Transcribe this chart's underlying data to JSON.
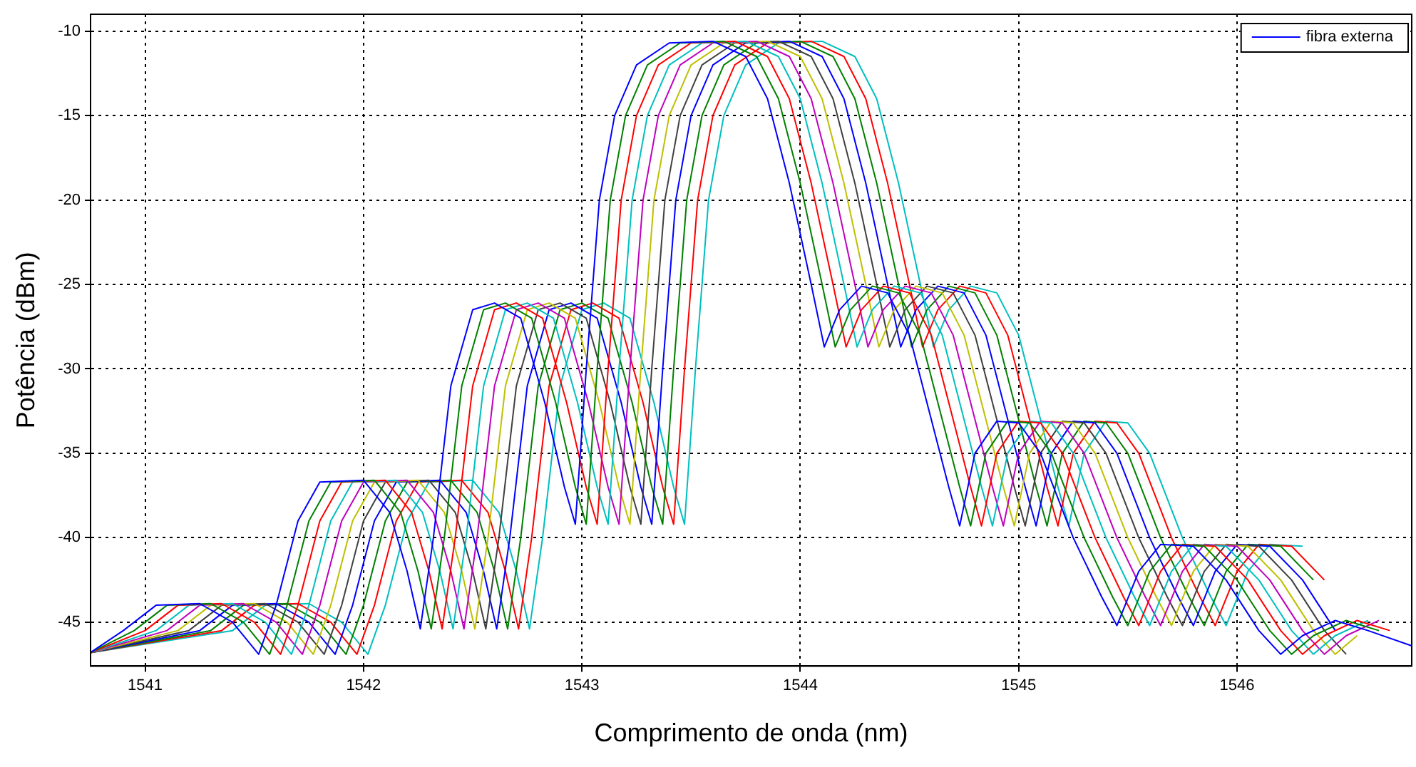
{
  "chart_data": {
    "type": "line",
    "xlabel": "Comprimento de onda (nm)",
    "ylabel": "Potência (dBm)",
    "xlim": [
      1540.75,
      1546.8
    ],
    "xticks": [
      1541,
      1542,
      1543,
      1544,
      1545,
      1546
    ],
    "ylim": [
      -47.6,
      -9
    ],
    "yticks": [
      -45,
      -40,
      -35,
      -30,
      -25,
      -20,
      -15,
      -10
    ],
    "grid": true,
    "legend": "top right",
    "marker": "none",
    "line_style": "solid",
    "series": [
      {
        "name": "fibra externa",
        "color": "#0000ff",
        "x": [
          1540.75,
          1540.9,
          1541.05,
          1541.25,
          1541.4,
          1541.52,
          1541.6,
          1541.7,
          1541.8,
          1542.0,
          1542.12,
          1542.2,
          1542.26,
          1542.32,
          1542.4,
          1542.5,
          1542.6,
          1542.72,
          1542.83,
          1542.92,
          1542.97,
          1543.02,
          1543.08,
          1543.15,
          1543.25,
          1543.4,
          1543.6,
          1543.75,
          1543.85,
          1543.95,
          1544.05,
          1544.11,
          1544.18,
          1544.28,
          1544.4,
          1544.5,
          1544.6,
          1544.68,
          1544.73,
          1544.8,
          1544.9,
          1545.0,
          1545.1,
          1545.25,
          1545.38,
          1545.45,
          1545.55,
          1545.65,
          1545.8,
          1545.95,
          1546.1,
          1546.2,
          1546.3,
          1546.45,
          1546.6,
          1546.8
        ],
        "values": [
          -46.8,
          -45.5,
          -44.0,
          -43.9,
          -45.0,
          -46.9,
          -44,
          -39,
          -36.7,
          -36.6,
          -38.5,
          -42,
          -45.4,
          -40,
          -31,
          -26.5,
          -26.1,
          -27,
          -32,
          -37,
          -39.2,
          -30,
          -20,
          -15,
          -12,
          -10.7,
          -10.6,
          -11.5,
          -14,
          -19,
          -25,
          -28.7,
          -26.5,
          -25.1,
          -25.5,
          -28,
          -33,
          -37,
          -39.3,
          -35,
          -33.1,
          -33.2,
          -35,
          -40,
          -43.5,
          -45.2,
          -42,
          -40.4,
          -40.5,
          -42.5,
          -45.5,
          -46.9,
          -45.8,
          -44.9,
          -45.5,
          -46.4
        ]
      },
      {
        "color": "#008000",
        "x": [
          1540.75,
          1540.95,
          1541.1,
          1541.3,
          1541.45,
          1541.57,
          1541.65,
          1541.75,
          1541.85,
          1542.05,
          1542.17,
          1542.25,
          1542.31,
          1542.37,
          1542.45,
          1542.55,
          1542.65,
          1542.77,
          1542.88,
          1542.97,
          1543.02,
          1543.07,
          1543.13,
          1543.2,
          1543.3,
          1543.45,
          1543.65,
          1543.8,
          1543.9,
          1544.0,
          1544.1,
          1544.16,
          1544.23,
          1544.33,
          1544.45,
          1544.55,
          1544.65,
          1544.73,
          1544.78,
          1544.85,
          1544.95,
          1545.05,
          1545.15,
          1545.3,
          1545.43,
          1545.5,
          1545.6,
          1545.7,
          1545.85,
          1546.0,
          1546.15,
          1546.25,
          1546.35,
          1546.5,
          1546.65
        ],
        "values": [
          -46.8,
          -45.5,
          -44.0,
          -43.9,
          -45.0,
          -46.9,
          -44,
          -39,
          -36.7,
          -36.6,
          -38.5,
          -42,
          -45.4,
          -40,
          -31,
          -26.5,
          -26.1,
          -27,
          -32,
          -37,
          -39.2,
          -30,
          -20,
          -15,
          -12,
          -10.7,
          -10.6,
          -11.5,
          -14,
          -19,
          -25,
          -28.7,
          -26.5,
          -25.1,
          -25.5,
          -28,
          -33,
          -37,
          -39.3,
          -35,
          -33.1,
          -33.2,
          -35,
          -40,
          -43.5,
          -45.2,
          -42,
          -40.4,
          -40.5,
          -42.5,
          -45.5,
          -46.9,
          -45.8,
          -44.9,
          -45.5
        ]
      },
      {
        "color": "#ff0000",
        "x": [
          1540.75,
          1541.0,
          1541.15,
          1541.35,
          1541.5,
          1541.62,
          1541.7,
          1541.8,
          1541.9,
          1542.1,
          1542.22,
          1542.3,
          1542.36,
          1542.42,
          1542.5,
          1542.6,
          1542.7,
          1542.82,
          1542.93,
          1543.02,
          1543.07,
          1543.12,
          1543.18,
          1543.25,
          1543.35,
          1543.5,
          1543.7,
          1543.85,
          1543.95,
          1544.05,
          1544.15,
          1544.21,
          1544.28,
          1544.38,
          1544.5,
          1544.6,
          1544.7,
          1544.78,
          1544.83,
          1544.9,
          1545.0,
          1545.1,
          1545.2,
          1545.35,
          1545.48,
          1545.55,
          1545.65,
          1545.75,
          1545.9,
          1546.05,
          1546.2,
          1546.3,
          1546.4,
          1546.55,
          1546.7
        ],
        "values": [
          -46.8,
          -45.5,
          -44.0,
          -43.9,
          -45.0,
          -46.9,
          -44,
          -39,
          -36.7,
          -36.6,
          -38.5,
          -42,
          -45.4,
          -40,
          -31,
          -26.5,
          -26.1,
          -27,
          -32,
          -37,
          -39.2,
          -30,
          -20,
          -15,
          -12,
          -10.7,
          -10.6,
          -11.5,
          -14,
          -19,
          -25,
          -28.7,
          -26.5,
          -25.1,
          -25.5,
          -28,
          -33,
          -37,
          -39.3,
          -35,
          -33.1,
          -33.2,
          -35,
          -40,
          -43.5,
          -45.2,
          -42,
          -40.4,
          -40.5,
          -42.5,
          -45.5,
          -46.9,
          -45.8,
          -44.9,
          -45.5
        ]
      },
      {
        "color": "#00bfbf",
        "x": [
          1540.75,
          1541.05,
          1541.2,
          1541.4,
          1541.55,
          1541.67,
          1541.75,
          1541.85,
          1541.95,
          1542.15,
          1542.27,
          1542.35,
          1542.41,
          1542.47,
          1542.55,
          1542.65,
          1542.75,
          1542.87,
          1542.98,
          1543.07,
          1543.12,
          1543.17,
          1543.23,
          1543.3,
          1543.4,
          1543.55,
          1543.75,
          1543.9,
          1544.0,
          1544.1,
          1544.2,
          1544.26,
          1544.33,
          1544.43,
          1544.55,
          1544.65,
          1544.75,
          1544.83,
          1544.88,
          1544.95,
          1545.05,
          1545.15,
          1545.25,
          1545.4,
          1545.53,
          1545.6,
          1545.7,
          1545.8,
          1545.95,
          1546.1,
          1546.25,
          1546.35,
          1546.45,
          1546.6
        ],
        "values": [
          -46.8,
          -45.5,
          -44.0,
          -43.9,
          -45.0,
          -46.9,
          -44,
          -39,
          -36.7,
          -36.6,
          -38.5,
          -42,
          -45.4,
          -40,
          -31,
          -26.5,
          -26.1,
          -27,
          -32,
          -37,
          -39.2,
          -30,
          -20,
          -15,
          -12,
          -10.7,
          -10.6,
          -11.5,
          -14,
          -19,
          -25,
          -28.7,
          -26.5,
          -25.1,
          -25.5,
          -28,
          -33,
          -37,
          -39.3,
          -35,
          -33.1,
          -33.2,
          -35,
          -40,
          -43.5,
          -45.2,
          -42,
          -40.4,
          -40.5,
          -42.5,
          -45.5,
          -46.9,
          -45.8,
          -44.9
        ]
      },
      {
        "color": "#bf00bf",
        "x": [
          1540.75,
          1541.1,
          1541.25,
          1541.45,
          1541.6,
          1541.72,
          1541.8,
          1541.9,
          1542.0,
          1542.2,
          1542.32,
          1542.4,
          1542.46,
          1542.52,
          1542.6,
          1542.7,
          1542.8,
          1542.92,
          1543.03,
          1543.12,
          1543.17,
          1543.22,
          1543.28,
          1543.35,
          1543.45,
          1543.6,
          1543.8,
          1543.95,
          1544.05,
          1544.15,
          1544.25,
          1544.31,
          1544.38,
          1544.48,
          1544.6,
          1544.7,
          1544.8,
          1544.88,
          1544.93,
          1545.0,
          1545.1,
          1545.2,
          1545.3,
          1545.45,
          1545.58,
          1545.65,
          1545.75,
          1545.85,
          1546.0,
          1546.15,
          1546.3,
          1546.4,
          1546.5,
          1546.65
        ],
        "values": [
          -46.8,
          -45.5,
          -44.0,
          -43.9,
          -45.0,
          -46.9,
          -44,
          -39,
          -36.7,
          -36.6,
          -38.5,
          -42,
          -45.4,
          -40,
          -31,
          -26.5,
          -26.1,
          -27,
          -32,
          -37,
          -39.2,
          -30,
          -20,
          -15,
          -12,
          -10.7,
          -10.6,
          -11.5,
          -14,
          -19,
          -25,
          -28.7,
          -26.5,
          -25.1,
          -25.5,
          -28,
          -33,
          -37,
          -39.3,
          -35,
          -33.1,
          -33.2,
          -35,
          -40,
          -43.5,
          -45.2,
          -42,
          -40.4,
          -40.5,
          -42.5,
          -45.5,
          -46.9,
          -45.8,
          -44.9
        ]
      },
      {
        "color": "#bfbf00",
        "x": [
          1540.75,
          1541.15,
          1541.3,
          1541.5,
          1541.65,
          1541.77,
          1541.85,
          1541.95,
          1542.05,
          1542.25,
          1542.37,
          1542.45,
          1542.51,
          1542.57,
          1542.65,
          1542.75,
          1542.85,
          1542.97,
          1543.08,
          1543.17,
          1543.22,
          1543.27,
          1543.33,
          1543.4,
          1543.5,
          1543.65,
          1543.85,
          1544.0,
          1544.1,
          1544.2,
          1544.3,
          1544.36,
          1544.43,
          1544.53,
          1544.65,
          1544.75,
          1544.85,
          1544.93,
          1544.98,
          1545.05,
          1545.15,
          1545.25,
          1545.35,
          1545.5,
          1545.63,
          1545.7,
          1545.8,
          1545.9,
          1546.05,
          1546.2,
          1546.35,
          1546.45,
          1546.55
        ],
        "values": [
          -46.8,
          -45.5,
          -44.0,
          -43.9,
          -45.0,
          -46.9,
          -44,
          -39,
          -36.7,
          -36.6,
          -38.5,
          -42,
          -45.4,
          -40,
          -31,
          -26.5,
          -26.1,
          -27,
          -32,
          -37,
          -39.2,
          -30,
          -20,
          -15,
          -12,
          -10.7,
          -10.6,
          -11.5,
          -14,
          -19,
          -25,
          -28.7,
          -26.5,
          -25.1,
          -25.5,
          -28,
          -33,
          -37,
          -39.3,
          -35,
          -33.1,
          -33.2,
          -35,
          -40,
          -43.5,
          -45.2,
          -42,
          -40.4,
          -40.5,
          -42.5,
          -45.5,
          -46.9,
          -45.8
        ]
      },
      {
        "color": "#404040",
        "x": [
          1540.75,
          1541.2,
          1541.35,
          1541.55,
          1541.7,
          1541.82,
          1541.9,
          1542.0,
          1542.1,
          1542.3,
          1542.42,
          1542.5,
          1542.56,
          1542.62,
          1542.7,
          1542.8,
          1542.9,
          1543.02,
          1543.13,
          1543.22,
          1543.27,
          1543.32,
          1543.38,
          1543.45,
          1543.55,
          1543.7,
          1543.9,
          1544.05,
          1544.15,
          1544.25,
          1544.35,
          1544.41,
          1544.48,
          1544.58,
          1544.7,
          1544.8,
          1544.9,
          1544.98,
          1545.03,
          1545.1,
          1545.2,
          1545.3,
          1545.4,
          1545.55,
          1545.68,
          1545.75,
          1545.85,
          1545.95,
          1546.1,
          1546.25,
          1546.4,
          1546.5
        ],
        "values": [
          -46.8,
          -45.5,
          -44.0,
          -43.9,
          -45.0,
          -46.9,
          -44,
          -39,
          -36.7,
          -36.6,
          -38.5,
          -42,
          -45.4,
          -40,
          -31,
          -26.5,
          -26.1,
          -27,
          -32,
          -37,
          -39.2,
          -30,
          -20,
          -15,
          -12,
          -10.7,
          -10.6,
          -11.5,
          -14,
          -19,
          -25,
          -28.7,
          -26.5,
          -25.1,
          -25.5,
          -28,
          -33,
          -37,
          -39.3,
          -35,
          -33.1,
          -33.2,
          -35,
          -40,
          -43.5,
          -45.2,
          -42,
          -40.4,
          -40.5,
          -42.5,
          -45.5,
          -46.9
        ]
      },
      {
        "color": "#0000ff",
        "x": [
          1540.75,
          1541.25,
          1541.4,
          1541.6,
          1541.75,
          1541.87,
          1541.95,
          1542.05,
          1542.15,
          1542.35,
          1542.47,
          1542.55,
          1542.61,
          1542.67,
          1542.75,
          1542.85,
          1542.95,
          1543.07,
          1543.18,
          1543.27,
          1543.32,
          1543.37,
          1543.43,
          1543.5,
          1543.6,
          1543.75,
          1543.95,
          1544.1,
          1544.2,
          1544.3,
          1544.4,
          1544.46,
          1544.53,
          1544.63,
          1544.75,
          1544.85,
          1544.95,
          1545.03,
          1545.08,
          1545.15,
          1545.25,
          1545.35,
          1545.45,
          1545.6,
          1545.73,
          1545.8,
          1545.9,
          1546.0,
          1546.15,
          1546.3,
          1546.45
        ],
        "values": [
          -46.8,
          -45.5,
          -44.0,
          -43.9,
          -45.0,
          -46.9,
          -44,
          -39,
          -36.7,
          -36.6,
          -38.5,
          -42,
          -45.4,
          -40,
          -31,
          -26.5,
          -26.1,
          -27,
          -32,
          -37,
          -39.2,
          -30,
          -20,
          -15,
          -12,
          -10.7,
          -10.6,
          -11.5,
          -14,
          -19,
          -25,
          -28.7,
          -26.5,
          -25.1,
          -25.5,
          -28,
          -33,
          -37,
          -39.3,
          -35,
          -33.1,
          -33.2,
          -35,
          -40,
          -43.5,
          -45.2,
          -42,
          -40.4,
          -40.5,
          -42.5,
          -45.5
        ]
      },
      {
        "color": "#008000",
        "x": [
          1540.75,
          1541.3,
          1541.45,
          1541.65,
          1541.8,
          1541.92,
          1542.0,
          1542.1,
          1542.2,
          1542.4,
          1542.52,
          1542.6,
          1542.66,
          1542.72,
          1542.8,
          1542.9,
          1543.0,
          1543.12,
          1543.23,
          1543.32,
          1543.37,
          1543.42,
          1543.48,
          1543.55,
          1543.65,
          1543.8,
          1544.0,
          1544.15,
          1544.25,
          1544.35,
          1544.45,
          1544.51,
          1544.58,
          1544.68,
          1544.8,
          1544.9,
          1545.0,
          1545.08,
          1545.13,
          1545.2,
          1545.3,
          1545.4,
          1545.5,
          1545.65,
          1545.78,
          1545.85,
          1545.95,
          1546.05,
          1546.2,
          1546.35
        ],
        "values": [
          -46.8,
          -45.5,
          -44.0,
          -43.9,
          -45.0,
          -46.9,
          -44,
          -39,
          -36.7,
          -36.6,
          -38.5,
          -42,
          -45.4,
          -40,
          -31,
          -26.5,
          -26.1,
          -27,
          -32,
          -37,
          -39.2,
          -30,
          -20,
          -15,
          -12,
          -10.7,
          -10.6,
          -11.5,
          -14,
          -19,
          -25,
          -28.7,
          -26.5,
          -25.1,
          -25.5,
          -28,
          -33,
          -37,
          -39.3,
          -35,
          -33.1,
          -33.2,
          -35,
          -40,
          -43.5,
          -45.2,
          -42,
          -40.4,
          -40.5,
          -42.5
        ]
      },
      {
        "color": "#ff0000",
        "x": [
          1540.75,
          1541.35,
          1541.5,
          1541.7,
          1541.85,
          1541.97,
          1542.05,
          1542.15,
          1542.25,
          1542.45,
          1542.57,
          1542.65,
          1542.71,
          1542.77,
          1542.85,
          1542.95,
          1543.05,
          1543.17,
          1543.28,
          1543.37,
          1543.42,
          1543.47,
          1543.53,
          1543.6,
          1543.7,
          1543.85,
          1544.05,
          1544.2,
          1544.3,
          1544.4,
          1544.5,
          1544.56,
          1544.63,
          1544.73,
          1544.85,
          1544.95,
          1545.05,
          1545.13,
          1545.18,
          1545.25,
          1545.35,
          1545.45,
          1545.55,
          1545.7,
          1545.83,
          1545.9,
          1546.0,
          1546.1,
          1546.25,
          1546.4
        ],
        "values": [
          -46.8,
          -45.5,
          -44.0,
          -43.9,
          -45.0,
          -46.9,
          -44,
          -39,
          -36.7,
          -36.6,
          -38.5,
          -42,
          -45.4,
          -40,
          -31,
          -26.5,
          -26.1,
          -27,
          -32,
          -37,
          -39.2,
          -30,
          -20,
          -15,
          -12,
          -10.7,
          -10.6,
          -11.5,
          -14,
          -19,
          -25,
          -28.7,
          -26.5,
          -25.1,
          -25.5,
          -28,
          -33,
          -37,
          -39.3,
          -35,
          -33.1,
          -33.2,
          -35,
          -40,
          -43.5,
          -45.2,
          -42,
          -40.4,
          -40.5,
          -42.5
        ]
      },
      {
        "color": "#00bfbf",
        "x": [
          1540.75,
          1541.4,
          1541.55,
          1541.75,
          1541.9,
          1542.02,
          1542.1,
          1542.2,
          1542.3,
          1542.5,
          1542.62,
          1542.7,
          1542.76,
          1542.82,
          1542.9,
          1543.0,
          1543.1,
          1543.22,
          1543.33,
          1543.42,
          1543.47,
          1543.52,
          1543.58,
          1543.65,
          1543.75,
          1543.9,
          1544.1,
          1544.25,
          1544.35,
          1544.45,
          1544.55,
          1544.61,
          1544.68,
          1544.78,
          1544.9,
          1545.0,
          1545.1,
          1545.18,
          1545.23,
          1545.3,
          1545.4,
          1545.5,
          1545.6,
          1545.75,
          1545.88,
          1545.95,
          1546.05,
          1546.15,
          1546.3
        ],
        "values": [
          -46.8,
          -45.5,
          -44.0,
          -43.9,
          -45.0,
          -46.9,
          -44,
          -39,
          -36.7,
          -36.6,
          -38.5,
          -42,
          -45.4,
          -40,
          -31,
          -26.5,
          -26.1,
          -27,
          -32,
          -37,
          -39.2,
          -30,
          -20,
          -15,
          -12,
          -10.7,
          -10.6,
          -11.5,
          -14,
          -19,
          -25,
          -28.7,
          -26.5,
          -25.1,
          -25.5,
          -28,
          -33,
          -37,
          -39.3,
          -35,
          -33.1,
          -33.2,
          -35,
          -40,
          -43.5,
          -45.2,
          -42,
          -40.4,
          -40.5
        ]
      }
    ]
  }
}
